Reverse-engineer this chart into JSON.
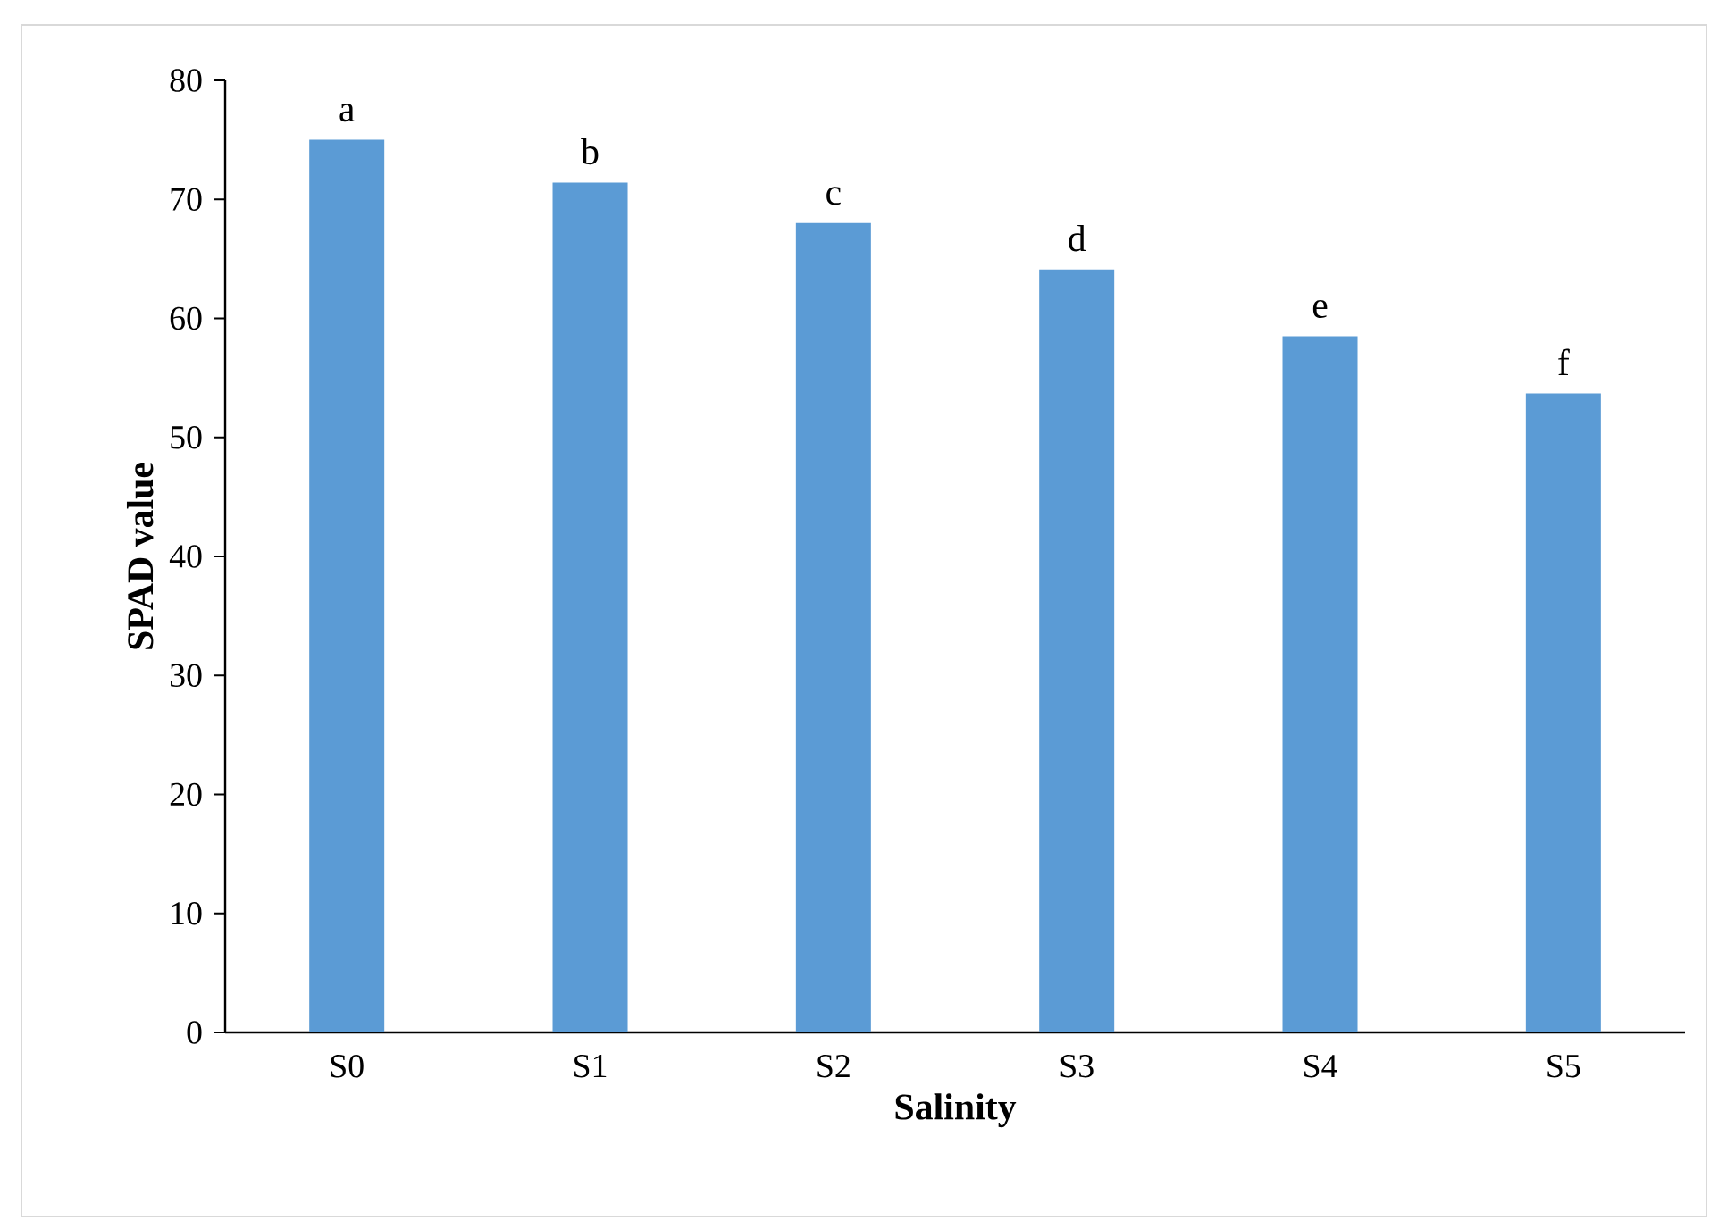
{
  "chart_data": {
    "type": "bar",
    "xlabel": "Salinity",
    "ylabel": "SPAD value",
    "categories": [
      "S0",
      "S1",
      "S2",
      "S3",
      "S4",
      "S5"
    ],
    "values": [
      75.0,
      71.4,
      68.0,
      64.1,
      58.5,
      53.7
    ],
    "color": "#5b9bd5",
    "ylim": [
      0,
      80
    ],
    "yticks": [
      0,
      10,
      20,
      30,
      40,
      50,
      60,
      70,
      80
    ],
    "annotations": [
      {
        "text": "a",
        "x": "S0",
        "y": 75.0
      },
      {
        "text": "b",
        "x": "S1",
        "y": 71.4
      },
      {
        "text": "c",
        "x": "S2",
        "y": 68.0
      },
      {
        "text": "d",
        "x": "S3",
        "y": 64.1
      },
      {
        "text": "e",
        "x": "S4",
        "y": 58.5
      },
      {
        "text": "f",
        "x": "S5",
        "y": 53.7
      }
    ]
  }
}
